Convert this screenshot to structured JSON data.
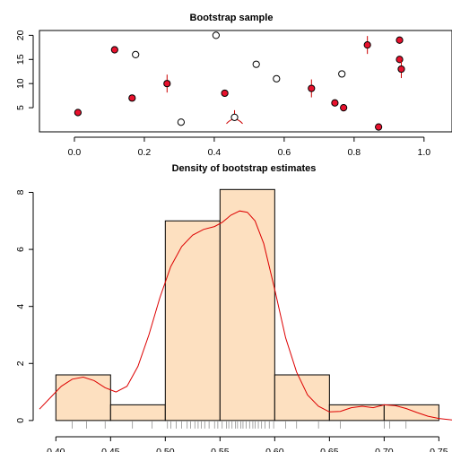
{
  "chart_data": [
    {
      "type": "scatter",
      "title": "Bootstrap sample",
      "xlim": [
        -0.1,
        1.08
      ],
      "ylim": [
        0,
        21
      ],
      "x_ticks": [
        0.0,
        0.2,
        0.4,
        0.6,
        0.8,
        1.0
      ],
      "x_tick_labels": [
        "0.0",
        "0.2",
        "0.4",
        "0.6",
        "0.8",
        "1.0"
      ],
      "y_ticks": [
        5,
        10,
        15,
        20
      ],
      "y_tick_labels": [
        "5",
        "10",
        "15",
        "20"
      ],
      "points": [
        {
          "x": 0.01,
          "y": 4,
          "selected": true,
          "jitter": 0
        },
        {
          "x": 0.115,
          "y": 17,
          "selected": true,
          "jitter": 0
        },
        {
          "x": 0.165,
          "y": 7,
          "selected": true,
          "jitter": 0
        },
        {
          "x": 0.175,
          "y": 16,
          "selected": false,
          "jitter": 0
        },
        {
          "x": 0.265,
          "y": 10,
          "selected": true,
          "jitter": 1
        },
        {
          "x": 0.305,
          "y": 2,
          "selected": false,
          "jitter": 0
        },
        {
          "x": 0.405,
          "y": 20,
          "selected": false,
          "jitter": 0
        },
        {
          "x": 0.43,
          "y": 8,
          "selected": true,
          "jitter": 0
        },
        {
          "x": 0.458,
          "y": 3,
          "selected": false,
          "jitter": 2
        },
        {
          "x": 0.52,
          "y": 14,
          "selected": false,
          "jitter": 0
        },
        {
          "x": 0.578,
          "y": 11,
          "selected": false,
          "jitter": 0
        },
        {
          "x": 0.678,
          "y": 9,
          "selected": true,
          "jitter": 1
        },
        {
          "x": 0.745,
          "y": 6,
          "selected": true,
          "jitter": 0
        },
        {
          "x": 0.765,
          "y": 12,
          "selected": false,
          "jitter": 0
        },
        {
          "x": 0.77,
          "y": 5,
          "selected": true,
          "jitter": 0
        },
        {
          "x": 0.838,
          "y": 18,
          "selected": true,
          "jitter": 1
        },
        {
          "x": 0.87,
          "y": 1,
          "selected": true,
          "jitter": 0
        },
        {
          "x": 0.93,
          "y": 19,
          "selected": true,
          "jitter": 0
        },
        {
          "x": 0.93,
          "y": 15,
          "selected": true,
          "jitter": 0
        },
        {
          "x": 0.935,
          "y": 13,
          "selected": true,
          "jitter": 1
        }
      ],
      "colors": {
        "selected_fill": "#e8112d",
        "marker_stroke": "#000000",
        "jitter_line": "#cc0000"
      }
    },
    {
      "type": "histogram",
      "title": "Density of bootstrap estimates",
      "xlim": [
        0.385,
        0.762
      ],
      "ylim": [
        -0.35,
        8.55
      ],
      "x_ticks": [
        0.4,
        0.45,
        0.5,
        0.55,
        0.6,
        0.65,
        0.7,
        0.75
      ],
      "x_tick_labels": [
        "0.40",
        "0.45",
        "0.50",
        "0.55",
        "0.60",
        "0.65",
        "0.70",
        "0.75"
      ],
      "y_ticks": [
        0,
        2,
        4,
        6,
        8
      ],
      "y_tick_labels": [
        "0",
        "2",
        "4",
        "6",
        "8"
      ],
      "bins": [
        {
          "from": 0.4,
          "to": 0.45,
          "density": 1.6
        },
        {
          "from": 0.45,
          "to": 0.5,
          "density": 0.55
        },
        {
          "from": 0.5,
          "to": 0.55,
          "density": 7.0
        },
        {
          "from": 0.55,
          "to": 0.6,
          "density": 8.1
        },
        {
          "from": 0.6,
          "to": 0.65,
          "density": 1.6
        },
        {
          "from": 0.65,
          "to": 0.7,
          "density": 0.55
        },
        {
          "from": 0.7,
          "to": 0.75,
          "density": 0.55
        }
      ],
      "density_curve": {
        "x": [
          0.385,
          0.395,
          0.405,
          0.415,
          0.425,
          0.435,
          0.445,
          0.455,
          0.465,
          0.475,
          0.485,
          0.495,
          0.505,
          0.515,
          0.525,
          0.535,
          0.545,
          0.552,
          0.56,
          0.568,
          0.575,
          0.582,
          0.59,
          0.6,
          0.61,
          0.62,
          0.63,
          0.64,
          0.65,
          0.66,
          0.67,
          0.68,
          0.69,
          0.7,
          0.71,
          0.72,
          0.73,
          0.74,
          0.75,
          0.762
        ],
        "y": [
          0.4,
          0.8,
          1.2,
          1.45,
          1.52,
          1.4,
          1.15,
          1.0,
          1.2,
          1.9,
          3.0,
          4.3,
          5.4,
          6.1,
          6.5,
          6.7,
          6.8,
          6.95,
          7.2,
          7.35,
          7.3,
          7.0,
          6.2,
          4.6,
          2.9,
          1.7,
          0.9,
          0.5,
          0.3,
          0.32,
          0.45,
          0.5,
          0.45,
          0.55,
          0.52,
          0.42,
          0.28,
          0.15,
          0.07,
          0.02
        ]
      },
      "rug": [
        0.415,
        0.428,
        0.445,
        0.47,
        0.488,
        0.502,
        0.505,
        0.51,
        0.515,
        0.52,
        0.523,
        0.527,
        0.53,
        0.533,
        0.536,
        0.54,
        0.545,
        0.548,
        0.552,
        0.556,
        0.558,
        0.561,
        0.564,
        0.566,
        0.569,
        0.571,
        0.574,
        0.577,
        0.58,
        0.582,
        0.585,
        0.588,
        0.591,
        0.595,
        0.599,
        0.61,
        0.62,
        0.64,
        0.66,
        0.7,
        0.705,
        0.72
      ],
      "colors": {
        "bar_fill": "#fde0c0",
        "bar_stroke": "#000000",
        "curve": "#dd0000",
        "rug": "#808080"
      }
    }
  ]
}
